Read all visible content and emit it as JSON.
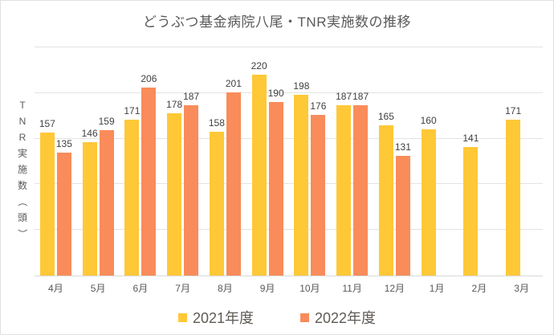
{
  "chart_data": {
    "type": "bar",
    "title": "どうぶつ基金病院八尾・TNR実施数の推移",
    "ylabel": "TNR実施数（頭）",
    "categories": [
      "4月",
      "5月",
      "6月",
      "7月",
      "8月",
      "9月",
      "10月",
      "11月",
      "12月",
      "1月",
      "2月",
      "3月"
    ],
    "series": [
      {
        "name": "2021年度",
        "color": "#FFC837",
        "values": [
          157,
          146,
          171,
          178,
          158,
          220,
          198,
          187,
          165,
          160,
          141,
          171
        ]
      },
      {
        "name": "2022年度",
        "color": "#F98C5A",
        "values": [
          135,
          159,
          206,
          187,
          201,
          190,
          176,
          187,
          131,
          null,
          null,
          null
        ]
      }
    ],
    "ylim": [
      0,
      250
    ],
    "grid_interval": 50,
    "grid": true,
    "legend_position": "bottom",
    "data_labels": true
  },
  "colors": {
    "series_2021": "#FFC837",
    "series_2022": "#F98C5A",
    "title_text": "#595959",
    "data_label_text": "#404040",
    "axis_text": "#595959",
    "gridline": "#E3E3E3",
    "frame_border": "#E0E0E0"
  }
}
